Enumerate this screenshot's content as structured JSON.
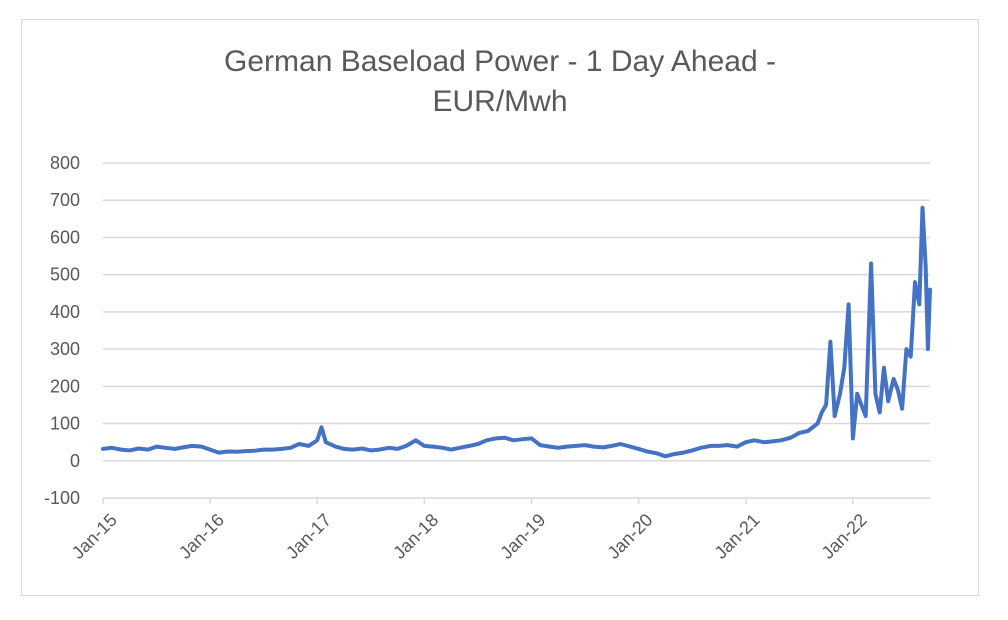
{
  "chart_data": {
    "type": "line",
    "title": "German Baseload Power - 1 Day Ahead - EUR/Mwh",
    "title_lines": [
      "German Baseload Power - 1 Day Ahead -",
      "EUR/Mwh"
    ],
    "xlabel": "",
    "ylabel": "",
    "ylim": [
      -100,
      800
    ],
    "yticks": [
      -100,
      0,
      100,
      200,
      300,
      400,
      500,
      600,
      700,
      800
    ],
    "ytick_labels": [
      "-100",
      "0",
      "100",
      "200",
      "300",
      "400",
      "500",
      "600",
      "700",
      "800"
    ],
    "xlim": [
      2015.0,
      2022.72
    ],
    "xtick_labels": [
      "Jan-15",
      "Jan-16",
      "Jan-17",
      "Jan-18",
      "Jan-19",
      "Jan-20",
      "Jan-21",
      "Jan-22"
    ],
    "xticks": [
      2015,
      2016,
      2017,
      2018,
      2019,
      2020,
      2021,
      2022
    ],
    "grid": true,
    "line_color": "#4472c4",
    "series": [
      {
        "x": [
          2015.0,
          2015.08,
          2015.17,
          2015.25,
          2015.33,
          2015.42,
          2015.5,
          2015.58,
          2015.67,
          2015.75,
          2015.83,
          2015.92,
          2016.0,
          2016.08,
          2016.17,
          2016.25,
          2016.33,
          2016.42,
          2016.5,
          2016.58,
          2016.67,
          2016.75,
          2016.83,
          2016.92,
          2017.0,
          2017.04,
          2017.08,
          2017.17,
          2017.25,
          2017.33,
          2017.42,
          2017.5,
          2017.58,
          2017.67,
          2017.75,
          2017.83,
          2017.92,
          2018.0,
          2018.08,
          2018.17,
          2018.25,
          2018.33,
          2018.42,
          2018.5,
          2018.58,
          2018.67,
          2018.75,
          2018.83,
          2018.92,
          2019.0,
          2019.08,
          2019.17,
          2019.25,
          2019.33,
          2019.42,
          2019.5,
          2019.58,
          2019.67,
          2019.75,
          2019.83,
          2019.92,
          2020.0,
          2020.08,
          2020.17,
          2020.25,
          2020.33,
          2020.42,
          2020.5,
          2020.58,
          2020.67,
          2020.75,
          2020.83,
          2020.92,
          2021.0,
          2021.08,
          2021.17,
          2021.25,
          2021.33,
          2021.42,
          2021.5,
          2021.58,
          2021.67,
          2021.71,
          2021.75,
          2021.79,
          2021.83,
          2021.88,
          2021.92,
          2021.96,
          2022.0,
          2022.04,
          2022.08,
          2022.12,
          2022.17,
          2022.21,
          2022.25,
          2022.29,
          2022.33,
          2022.38,
          2022.42,
          2022.46,
          2022.5,
          2022.54,
          2022.58,
          2022.62,
          2022.65,
          2022.68,
          2022.7,
          2022.72
        ],
        "y": [
          32,
          35,
          30,
          28,
          33,
          30,
          38,
          35,
          32,
          36,
          40,
          38,
          30,
          22,
          25,
          24,
          26,
          27,
          30,
          30,
          32,
          35,
          45,
          40,
          55,
          90,
          50,
          38,
          32,
          30,
          33,
          28,
          30,
          35,
          32,
          40,
          55,
          40,
          38,
          35,
          30,
          35,
          40,
          45,
          55,
          60,
          62,
          55,
          58,
          60,
          42,
          38,
          35,
          38,
          40,
          42,
          38,
          36,
          40,
          45,
          38,
          32,
          25,
          20,
          12,
          18,
          22,
          28,
          35,
          40,
          40,
          42,
          38,
          50,
          55,
          50,
          52,
          55,
          62,
          75,
          80,
          100,
          130,
          150,
          320,
          120,
          180,
          250,
          420,
          60,
          180,
          150,
          120,
          530,
          180,
          130,
          250,
          160,
          220,
          190,
          140,
          300,
          280,
          480,
          420,
          680,
          520,
          300,
          460
        ]
      }
    ]
  }
}
